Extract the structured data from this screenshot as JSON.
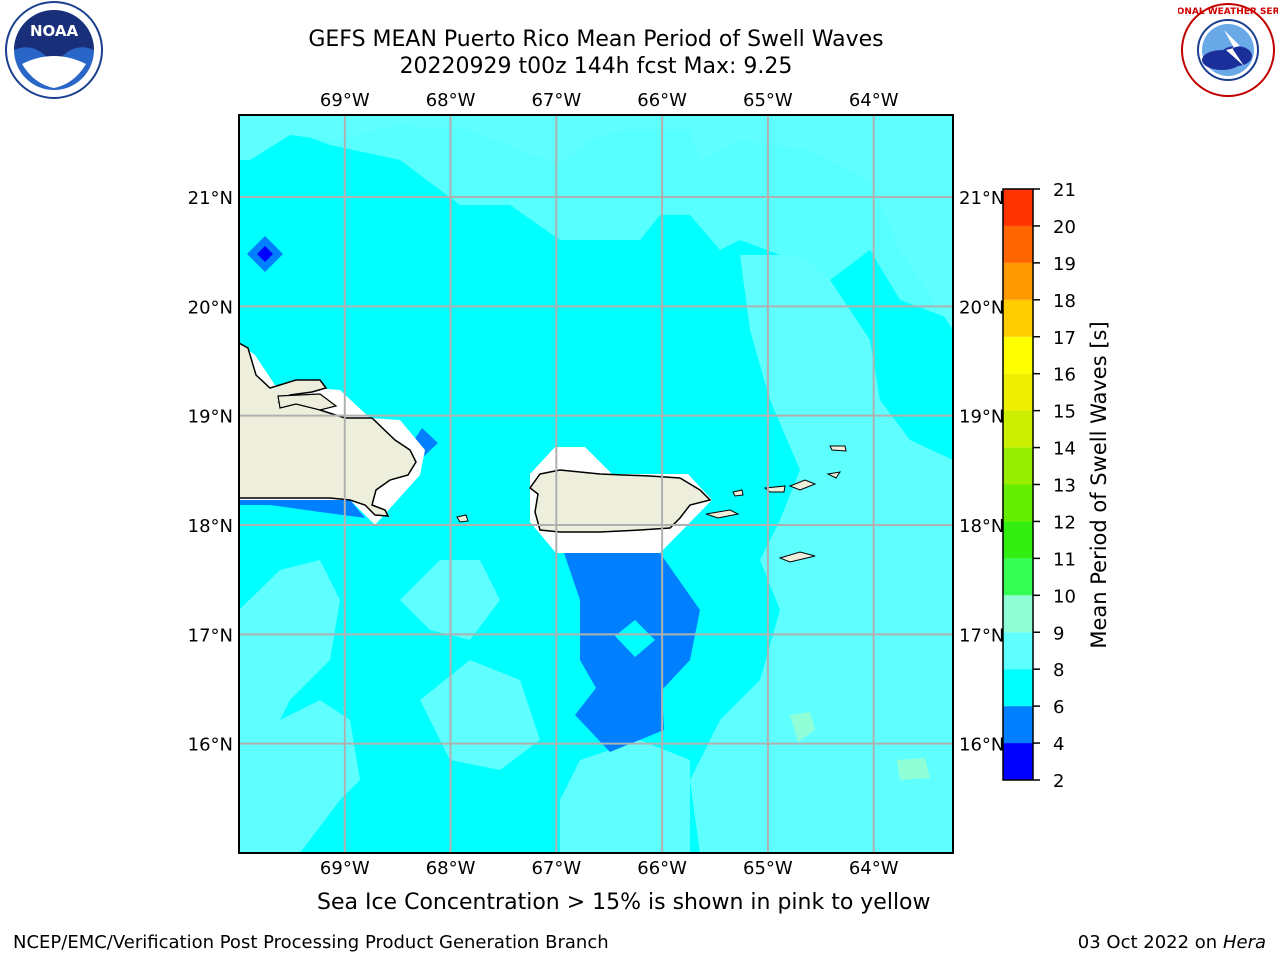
{
  "title_line1": "GEFS MEAN Puerto Rico Mean Period of Swell Waves",
  "title_line2": "20220929 t00z 144h fcst   Max: 9.25",
  "logos": {
    "left": "noaa-logo",
    "right": "nws-logo",
    "noaa_text": "NOAA",
    "nws_text": "NATIONAL WEATHER SERVICE"
  },
  "map": {
    "lon_ticks": [
      "69°W",
      "68°W",
      "67°W",
      "66°W",
      "65°W",
      "64°W"
    ],
    "lat_ticks": [
      "21°N",
      "20°N",
      "19°N",
      "18°N",
      "17°N",
      "16°N"
    ],
    "lon_range": [
      -70.0,
      -63.25
    ],
    "lat_range": [
      15.0,
      21.75
    ],
    "fill_colors": {
      "land": "#eeeedd",
      "c4_6": "#0080ff",
      "c6_8": "#00ffff",
      "c8_9": "#60ffff",
      "c9_10": "#90ffd8",
      "c2_4": "#0000ff"
    }
  },
  "colorbar": {
    "label": "Mean Period of Swell Waves [s]",
    "ticks": [
      "2",
      "4",
      "6",
      "8",
      "9",
      "10",
      "11",
      "12",
      "13",
      "14",
      "15",
      "16",
      "17",
      "18",
      "19",
      "20",
      "21"
    ],
    "colors": [
      "#0000ff",
      "#0080ff",
      "#00ffff",
      "#60ffff",
      "#90ffd8",
      "#33ff55",
      "#33ee11",
      "#66ee00",
      "#99ee00",
      "#ccee00",
      "#eeee00",
      "#ffff00",
      "#ffcc00",
      "#ff9900",
      "#ff6600",
      "#ff3300",
      "#ff0000"
    ]
  },
  "caption": "Sea Ice Concentration > 15% is shown in pink to yellow",
  "footer_left": "NCEP/EMC/Verification Post Processing Product Generation Branch",
  "footer_right_date": "03 Oct 2022 on",
  "footer_right_host": "Hera"
}
